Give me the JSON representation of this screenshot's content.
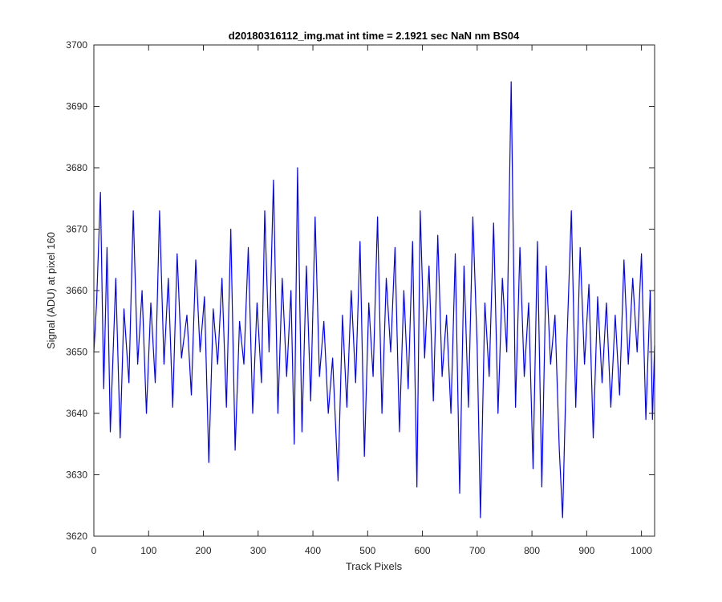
{
  "chart_data": {
    "type": "line",
    "title": "d20180316112_img.mat int time = 2.1921 sec  NaN nm BS04",
    "xlabel": "Track Pixels",
    "ylabel": "Signal (ADU) at pixel 160",
    "xlim": [
      0,
      1024
    ],
    "ylim": [
      3620,
      3700
    ],
    "xticks": [
      0,
      100,
      200,
      300,
      400,
      500,
      600,
      700,
      800,
      900,
      1000
    ],
    "yticks": [
      3620,
      3630,
      3640,
      3650,
      3660,
      3670,
      3680,
      3690,
      3700
    ],
    "grid": false,
    "line_color": "#0000ff",
    "series": [
      {
        "x": [
          0,
          5,
          12,
          18,
          24,
          30,
          40,
          48,
          55,
          64,
          72,
          80,
          88,
          96,
          104,
          112,
          120,
          128,
          136,
          144,
          152,
          160,
          170,
          178,
          186,
          194,
          202,
          210,
          218,
          226,
          234,
          242,
          250,
          258,
          266,
          274,
          282,
          290,
          298,
          306,
          312,
          320,
          328,
          336,
          344,
          352,
          360,
          366,
          372,
          380,
          388,
          396,
          404,
          412,
          420,
          428,
          436,
          446,
          454,
          462,
          470,
          478,
          486,
          494,
          502,
          510,
          518,
          526,
          534,
          542,
          550,
          558,
          566,
          574,
          582,
          590,
          596,
          604,
          612,
          620,
          628,
          636,
          644,
          652,
          660,
          668,
          676,
          684,
          692,
          700,
          706,
          714,
          722,
          730,
          738,
          746,
          754,
          762,
          770,
          778,
          786,
          794,
          802,
          810,
          818,
          826,
          834,
          842,
          850,
          856,
          864,
          872,
          880,
          888,
          896,
          904,
          912,
          920,
          928,
          936,
          944,
          952,
          960,
          968,
          976,
          984,
          992,
          1000,
          1008,
          1016,
          1020,
          1024
        ],
        "y": [
          3650,
          3658,
          3676,
          3644,
          3667,
          3637,
          3662,
          3636,
          3657,
          3645,
          3673,
          3648,
          3660,
          3640,
          3658,
          3645,
          3673,
          3648,
          3662,
          3641,
          3666,
          3649,
          3656,
          3643,
          3665,
          3650,
          3659,
          3632,
          3657,
          3648,
          3662,
          3641,
          3670,
          3634,
          3655,
          3648,
          3667,
          3640,
          3658,
          3645,
          3673,
          3650,
          3678,
          3640,
          3662,
          3646,
          3660,
          3635,
          3680,
          3637,
          3664,
          3642,
          3672,
          3646,
          3655,
          3640,
          3649,
          3629,
          3656,
          3641,
          3660,
          3645,
          3668,
          3633,
          3658,
          3646,
          3672,
          3640,
          3662,
          3650,
          3667,
          3637,
          3660,
          3644,
          3668,
          3628,
          3673,
          3649,
          3664,
          3642,
          3669,
          3646,
          3656,
          3640,
          3666,
          3627,
          3664,
          3641,
          3672,
          3651,
          3623,
          3658,
          3646,
          3671,
          3640,
          3662,
          3650,
          3694,
          3641,
          3667,
          3646,
          3658,
          3631,
          3668,
          3628,
          3664,
          3648,
          3656,
          3634,
          3623,
          3652,
          3673,
          3641,
          3667,
          3648,
          3661,
          3636,
          3659,
          3645,
          3658,
          3641,
          3656,
          3643,
          3665,
          3648,
          3662,
          3650,
          3666,
          3639,
          3660,
          3639,
          3651
        ]
      }
    ]
  }
}
